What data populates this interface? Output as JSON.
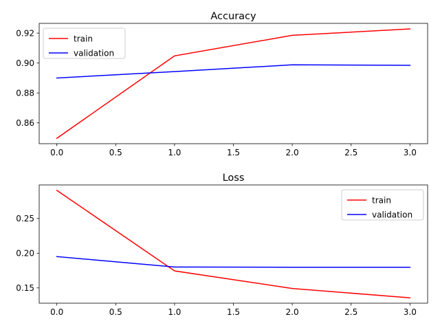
{
  "chart_data": [
    {
      "type": "line",
      "title": "Accuracy",
      "xlabel": "",
      "ylabel": "",
      "x": [
        0,
        1,
        2,
        3
      ],
      "series": [
        {
          "name": "train",
          "color": "#ff0000",
          "values": [
            0.8497,
            0.9048,
            0.9185,
            0.9228
          ]
        },
        {
          "name": "validation",
          "color": "#0000ff",
          "values": [
            0.89,
            0.8943,
            0.8988,
            0.8985
          ]
        }
      ],
      "xlim": [
        -0.15,
        3.15
      ],
      "ylim": [
        0.8461,
        0.9265
      ],
      "xticks": [
        0.0,
        0.5,
        1.0,
        1.5,
        2.0,
        2.5,
        3.0
      ],
      "xtick_labels": [
        "0.0",
        "0.5",
        "1.0",
        "1.5",
        "2.0",
        "2.5",
        "3.0"
      ],
      "yticks": [
        0.86,
        0.88,
        0.9,
        0.92
      ],
      "ytick_labels": [
        "0.86",
        "0.88",
        "0.90",
        "0.92"
      ],
      "grid": false,
      "legend_position": "upper-left"
    },
    {
      "type": "line",
      "title": "Loss",
      "xlabel": "",
      "ylabel": "",
      "x": [
        0,
        1,
        2,
        3
      ],
      "series": [
        {
          "name": "train",
          "color": "#ff0000",
          "values": [
            0.2905,
            0.1745,
            0.1492,
            0.1357
          ]
        },
        {
          "name": "validation",
          "color": "#0000ff",
          "values": [
            0.1951,
            0.1801,
            0.1797,
            0.1797
          ]
        }
      ],
      "xlim": [
        -0.15,
        3.15
      ],
      "ylim": [
        0.128,
        0.2983
      ],
      "xticks": [
        0.0,
        0.5,
        1.0,
        1.5,
        2.0,
        2.5,
        3.0
      ],
      "xtick_labels": [
        "0.0",
        "0.5",
        "1.0",
        "1.5",
        "2.0",
        "2.5",
        "3.0"
      ],
      "yticks": [
        0.15,
        0.2,
        0.25
      ],
      "ytick_labels": [
        "0.15",
        "0.20",
        "0.25"
      ],
      "grid": false,
      "legend_position": "upper-right"
    }
  ]
}
